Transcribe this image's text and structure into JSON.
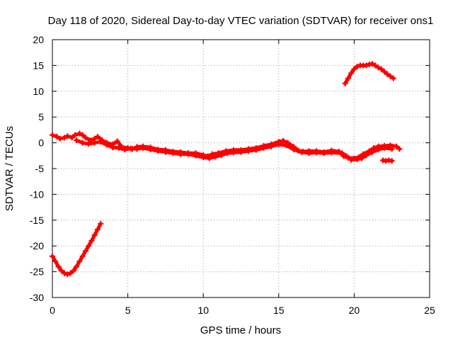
{
  "chart_data": {
    "type": "scatter",
    "title": "Day 118 of 2020, Sidereal Day-to-day VTEC variation (SDTVAR) for receiver ons1",
    "xlabel": "GPS time / hours",
    "ylabel": "SDTVAR / TECUs",
    "xlim": [
      0,
      25
    ],
    "ylim": [
      -30,
      20
    ],
    "xticks": [
      0,
      5,
      10,
      15,
      20,
      25
    ],
    "yticks": [
      -30,
      -25,
      -20,
      -15,
      -10,
      -5,
      0,
      5,
      10,
      15,
      20
    ],
    "grid": true,
    "series_color": "#ff0000",
    "series": [
      {
        "name": "arc-early",
        "x": [
          0.0,
          0.2,
          0.4,
          0.6,
          0.8,
          1.0,
          1.2,
          1.4,
          1.6,
          1.8,
          2.0,
          2.2,
          2.4,
          2.6,
          2.8,
          3.0,
          3.2
        ],
        "y": [
          -22.0,
          -23.0,
          -24.0,
          -24.8,
          -25.3,
          -25.5,
          -25.3,
          -24.8,
          -24.0,
          -23.0,
          -22.0,
          -21.0,
          -20.0,
          -19.0,
          -17.9,
          -16.8,
          -15.7
        ]
      },
      {
        "name": "main-band",
        "x": [
          0.0,
          0.3,
          0.5,
          0.8,
          1.0,
          1.3,
          1.5,
          1.8,
          2.0,
          2.2,
          2.5,
          2.8,
          3.0,
          3.3,
          3.6,
          4.0,
          4.3,
          4.6,
          5.0,
          5.3,
          5.6,
          6.0,
          6.5,
          7.0,
          7.5,
          8.0,
          8.5,
          9.0,
          9.5,
          10.0,
          10.3,
          10.6,
          11.0,
          11.5,
          12.0,
          12.5,
          13.0,
          13.5,
          14.0,
          14.5,
          15.0,
          15.3,
          15.6,
          16.0,
          16.3,
          16.6,
          17.0,
          17.5,
          18.0,
          18.5,
          19.0,
          19.3,
          19.6,
          20.0,
          20.3,
          20.6,
          21.0,
          21.3,
          21.6,
          22.0,
          22.4,
          22.8,
          23.0
        ],
        "y": [
          1.5,
          1.2,
          0.8,
          1.0,
          1.3,
          1.0,
          1.5,
          1.8,
          1.5,
          1.0,
          0.5,
          0.8,
          1.2,
          0.5,
          0.0,
          -0.3,
          0.3,
          -0.8,
          -1.0,
          -1.2,
          -0.8,
          -0.7,
          -0.9,
          -1.3,
          -1.4,
          -1.7,
          -1.8,
          -2.0,
          -2.0,
          -2.4,
          -2.6,
          -2.2,
          -2.0,
          -1.6,
          -1.4,
          -1.4,
          -1.2,
          -1.0,
          -0.6,
          -0.3,
          0.2,
          0.4,
          0.0,
          -0.8,
          -1.5,
          -1.7,
          -1.6,
          -1.6,
          -1.8,
          -1.5,
          -1.7,
          -2.6,
          -2.9,
          -3.0,
          -2.8,
          -2.2,
          -1.6,
          -1.0,
          -0.7,
          -0.6,
          -0.5,
          -0.7,
          -1.2
        ]
      },
      {
        "name": "main-band-lower",
        "x": [
          1.6,
          2.0,
          2.4,
          2.8,
          3.2,
          3.6,
          4.0,
          4.4,
          4.8,
          5.2,
          5.6,
          6.0,
          6.5,
          7.0,
          7.5,
          8.0,
          8.5,
          9.0,
          9.5,
          10.0,
          10.4,
          10.8,
          11.2,
          11.6,
          12.0,
          12.5,
          13.0,
          13.5,
          14.0,
          14.5,
          15.0,
          15.5,
          16.0,
          16.5,
          17.0,
          17.5,
          18.0,
          18.5,
          19.2,
          19.5,
          19.8,
          20.2,
          20.5,
          20.8,
          21.2,
          21.6,
          22.0,
          22.5
        ],
        "y": [
          0.5,
          0.0,
          -0.2,
          0.0,
          0.2,
          -0.4,
          -0.9,
          -1.0,
          -1.3,
          -1.1,
          -1.2,
          -1.0,
          -1.3,
          -1.6,
          -1.8,
          -2.0,
          -2.2,
          -2.2,
          -2.5,
          -2.8,
          -3.0,
          -2.7,
          -2.4,
          -2.0,
          -1.9,
          -1.8,
          -1.6,
          -1.4,
          -1.0,
          -0.7,
          -0.3,
          -0.5,
          -1.3,
          -1.8,
          -2.0,
          -1.9,
          -2.0,
          -1.9,
          -2.0,
          -2.6,
          -3.3,
          -3.2,
          -3.0,
          -2.4,
          -1.8,
          -1.3,
          -1.0,
          -1.2
        ]
      },
      {
        "name": "dash-late",
        "x": [
          21.9,
          22.1,
          22.3,
          22.5
        ],
        "y": [
          -3.4,
          -3.5,
          -3.4,
          -3.5
        ]
      },
      {
        "name": "arc-late",
        "x": [
          19.4,
          19.6,
          19.8,
          20.0,
          20.2,
          20.4,
          20.6,
          20.8,
          21.0,
          21.2,
          21.4,
          21.6,
          21.8,
          22.0,
          22.2,
          22.4,
          22.6
        ],
        "y": [
          11.5,
          12.5,
          13.5,
          14.3,
          14.8,
          15.0,
          15.0,
          15.0,
          15.2,
          15.3,
          15.0,
          14.6,
          14.3,
          13.8,
          13.3,
          12.9,
          12.5
        ]
      }
    ]
  }
}
